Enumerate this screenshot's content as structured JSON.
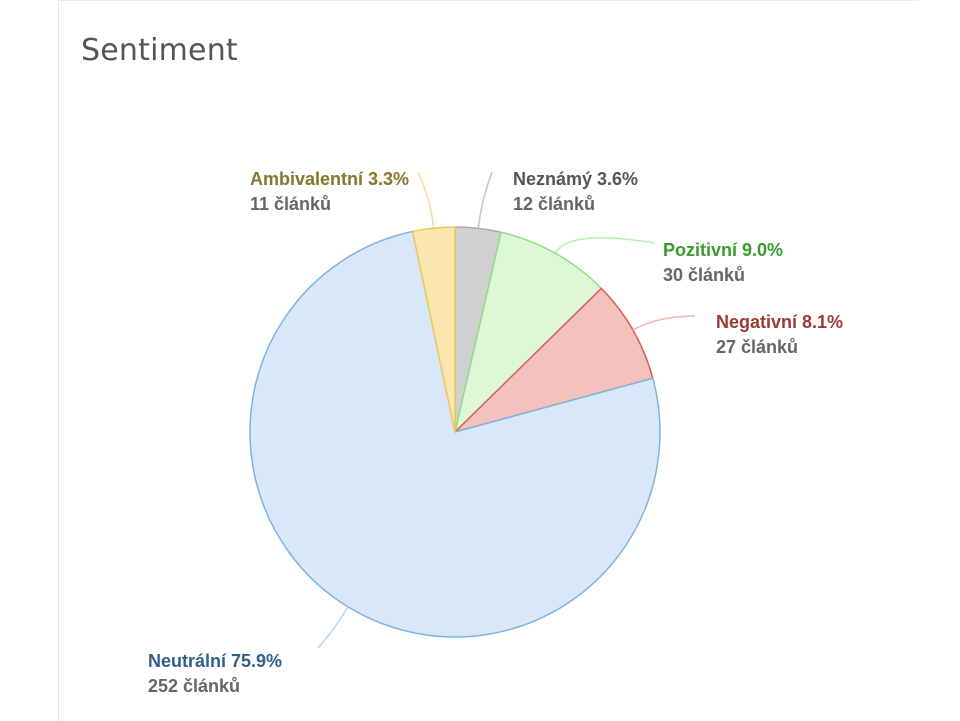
{
  "panel": {
    "title": "Sentiment"
  },
  "chart_data": {
    "type": "pie",
    "title": "Sentiment",
    "slices": [
      {
        "name": "Neznámý",
        "percent_label": "3.6%",
        "count_label": "12 článků",
        "count": 12,
        "color": "#d0d0d0",
        "stroke": "#aaaaaa",
        "text_color": "#555555",
        "leader_color": "#c4c4c4"
      },
      {
        "name": "Pozitivní",
        "percent_label": "9.0%",
        "count_label": "30 článků",
        "count": 30,
        "color": "#dcf8d6",
        "stroke": "#8fe07f",
        "text_color": "#3a9a2e",
        "leader_color": "#b8eeb0"
      },
      {
        "name": "Negativní",
        "percent_label": "8.1%",
        "count_label": "27 článků",
        "count": 27,
        "color": "#f5c1bd",
        "stroke": "#e05a4e",
        "text_color": "#993b34",
        "leader_color": "#f2b4ae"
      },
      {
        "name": "Neutrální",
        "percent_label": "75.9%",
        "count_label": "252 článků",
        "count": 252,
        "color": "#d9e8f8",
        "stroke": "#7eb3e0",
        "text_color": "#2f5f8a",
        "leader_color": "#b9d4ee"
      },
      {
        "name": "Ambivalentní",
        "percent_label": "3.3%",
        "count_label": "11 článků",
        "count": 11,
        "color": "#fbe6ad",
        "stroke": "#f0c85a",
        "text_color": "#8a7428",
        "leader_color": "#f5dc93"
      }
    ],
    "start": "top",
    "direction": "clockwise",
    "legend": "outside-labels"
  }
}
